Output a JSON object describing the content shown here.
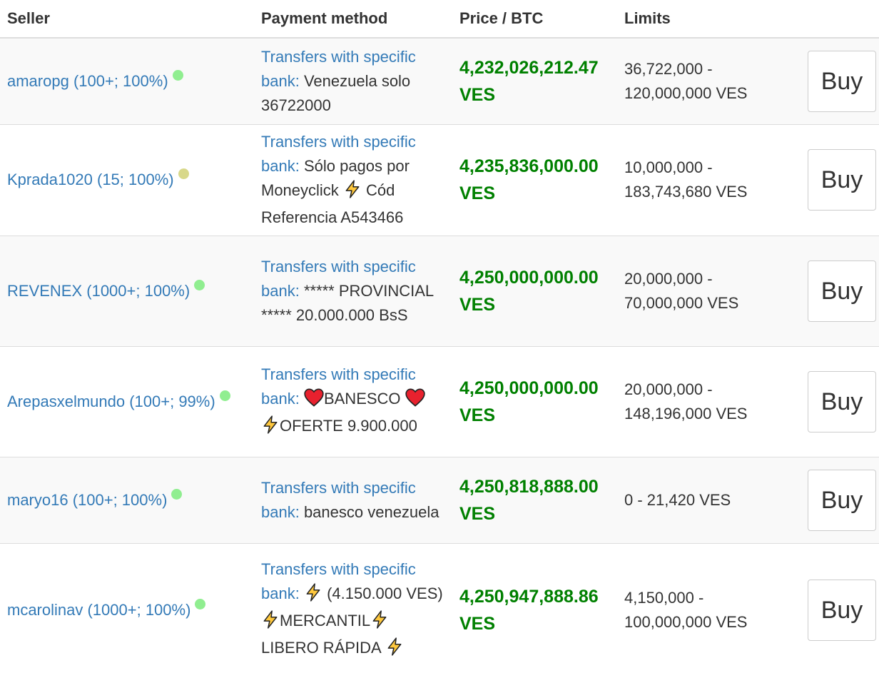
{
  "header": {
    "seller": "Seller",
    "payment": "Payment method",
    "price": "Price / BTC",
    "limits": "Limits"
  },
  "colors": {
    "link": "#337ab7",
    "price": "#008000",
    "dot_online": "#90ee90",
    "dot_away": "#d8d88a"
  },
  "rows": [
    {
      "seller": "amaropg (100+; 100%)",
      "status": "online",
      "method": "Transfers with specific bank:",
      "details": [
        {
          "t": "text",
          "v": " Venezuela solo 36722000"
        }
      ],
      "price": "4,232,026,212.47",
      "currency": "VES",
      "limit_min": "36,722,000 -",
      "limit_max": "120,000,000 VES",
      "buy": "Buy"
    },
    {
      "seller": "Kprada1020 (15; 100%)",
      "status": "away",
      "method": "Transfers with specific bank:",
      "details": [
        {
          "t": "text",
          "v": " Sólo pagos por Moneyclick "
        },
        {
          "t": "icon",
          "v": "lightning-icon"
        },
        {
          "t": "text",
          "v": " Cód Referencia A543466"
        }
      ],
      "price": "4,235,836,000.00",
      "currency": "VES",
      "limit_min": "10,000,000 -",
      "limit_max": "183,743,680 VES",
      "buy": "Buy"
    },
    {
      "seller": "REVENEX (1000+; 100%)",
      "status": "online",
      "method": "Transfers with specific bank:",
      "details": [
        {
          "t": "text",
          "v": " ***** PROVINCIAL ***** 20.000.000 BsS"
        }
      ],
      "price": "4,250,000,000.00",
      "currency": "VES",
      "limit_min": "20,000,000 -",
      "limit_max": "70,000,000 VES",
      "buy": "Buy"
    },
    {
      "seller": "Arepasxelmundo (100+; 99%)",
      "status": "online",
      "method": "Transfers with specific bank:",
      "details": [
        {
          "t": "text",
          "v": " "
        },
        {
          "t": "icon",
          "v": "heart-icon"
        },
        {
          "t": "text",
          "v": "BANESCO "
        },
        {
          "t": "icon",
          "v": "heart-icon"
        },
        {
          "t": "text",
          "v": " "
        },
        {
          "t": "icon",
          "v": "lightning-icon"
        },
        {
          "t": "text",
          "v": "OFERTE 9.900.000"
        }
      ],
      "price": "4,250,000,000.00",
      "currency": "VES",
      "limit_min": "20,000,000 -",
      "limit_max": "148,196,000 VES",
      "buy": "Buy"
    },
    {
      "seller": "maryo16 (100+; 100%)",
      "status": "online",
      "method": "Transfers with specific bank:",
      "details": [
        {
          "t": "text",
          "v": " banesco venezuela"
        }
      ],
      "price": "4,250,818,888.00",
      "currency": "VES",
      "limit_min": "0 - 21,420 VES",
      "limit_max": "",
      "buy": "Buy"
    },
    {
      "seller": "mcarolinav (1000+; 100%)",
      "status": "online",
      "method": "Transfers with specific bank:",
      "details": [
        {
          "t": "text",
          "v": " "
        },
        {
          "t": "icon",
          "v": "lightning-icon"
        },
        {
          "t": "text",
          "v": " (4.150.000 VES) "
        },
        {
          "t": "icon",
          "v": "lightning-icon"
        },
        {
          "t": "text",
          "v": "MERCANTIL"
        },
        {
          "t": "icon",
          "v": "lightning-icon"
        },
        {
          "t": "text",
          "v": " LIBERO RÁPIDA "
        },
        {
          "t": "icon",
          "v": "lightning-icon"
        }
      ],
      "price": "4,250,947,888.86",
      "currency": "VES",
      "limit_min": "4,150,000 -",
      "limit_max": "100,000,000 VES",
      "buy": "Buy"
    }
  ]
}
